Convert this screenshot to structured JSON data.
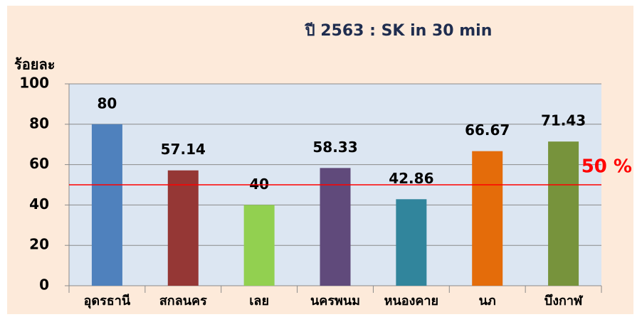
{
  "chart_data": {
    "type": "bar",
    "title": "ปี 2563 : SK in 30 min",
    "y_label": "ร้อยละ",
    "categories": [
      "อุดรธานี",
      "สกลนคร",
      "เลย",
      "นครพนม",
      "หนองคาย",
      "นภ",
      "บึงกาฬ"
    ],
    "values": [
      80,
      57.14,
      40,
      58.33,
      42.86,
      66.67,
      71.43
    ],
    "colors": [
      "#4f81bd",
      "#953735",
      "#92d050",
      "#604a7b",
      "#31859c",
      "#e46c0a",
      "#77933c"
    ],
    "ylim": [
      0,
      100
    ],
    "yticks": [
      0,
      20,
      40,
      60,
      80,
      100
    ],
    "grid": true,
    "reference_line": {
      "value": 50,
      "label": "50 %",
      "color": "#ff0000"
    }
  }
}
